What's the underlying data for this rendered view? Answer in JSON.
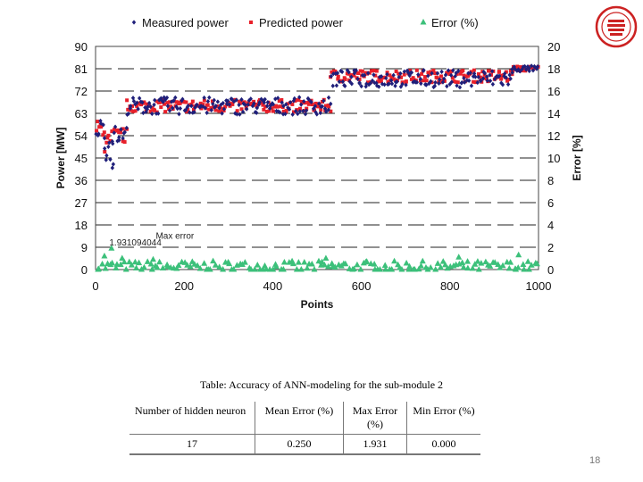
{
  "chart_data": {
    "type": "scatter",
    "xlabel": "Points",
    "ylabel": "Power [MW]",
    "y2label": "Error [%]",
    "xlim": [
      0,
      1000
    ],
    "ylim": [
      0,
      90
    ],
    "y2lim": [
      0,
      20
    ],
    "xticks": [
      "0",
      "200",
      "400",
      "600",
      "800",
      "1000"
    ],
    "yticks": [
      "0",
      "9",
      "18",
      "27",
      "36",
      "45",
      "54",
      "63",
      "72",
      "81",
      "90"
    ],
    "y2ticks": [
      "0",
      "2",
      "4",
      "6",
      "8",
      "10",
      "12",
      "14",
      "16",
      "18",
      "20"
    ],
    "grid": "horizontal dashed",
    "legend_placement": "top",
    "series": [
      {
        "name": "Measured power",
        "axis": "left",
        "color": "#1f1f7a",
        "marker": "diamond",
        "segments": [
          {
            "x": [
              0,
              20
            ],
            "y": 57,
            "spread": 4
          },
          {
            "x": [
              20,
              35
            ],
            "y": 50,
            "spread": 6
          },
          {
            "x": [
              35,
              70
            ],
            "y": 54,
            "spread": 4
          },
          {
            "x": [
              70,
              530
            ],
            "y": 66,
            "spread": 3.5
          },
          {
            "x": [
              530,
              940
            ],
            "y": 77,
            "spread": 3.5
          },
          {
            "x": [
              940,
              1000
            ],
            "y": 81,
            "spread": 1.2
          }
        ]
      },
      {
        "name": "Predicted power",
        "axis": "left",
        "color": "#e8202a",
        "marker": "square",
        "segments": [
          {
            "x": [
              0,
              20
            ],
            "y": 57,
            "spread": 3
          },
          {
            "x": [
              20,
              35
            ],
            "y": 50,
            "spread": 5
          },
          {
            "x": [
              35,
              70
            ],
            "y": 54,
            "spread": 3
          },
          {
            "x": [
              70,
              530
            ],
            "y": 66,
            "spread": 2.5
          },
          {
            "x": [
              530,
              940
            ],
            "y": 78,
            "spread": 2.5
          },
          {
            "x": [
              940,
              1000
            ],
            "y": 81,
            "spread": 1
          }
        ]
      },
      {
        "name": "Error (%)",
        "axis": "right",
        "color": "#3cc07a",
        "marker": "triangle",
        "segments": [
          {
            "x": [
              0,
              1000
            ],
            "y": 0.25,
            "spread": 0.5
          }
        ]
      }
    ],
    "annotations": [
      {
        "text": "1.931094044",
        "x": 35,
        "y": 1.931,
        "axis": "right"
      },
      {
        "text": "Max error",
        "x": 140,
        "y": 2.7,
        "axis": "right"
      }
    ]
  },
  "table": {
    "caption": "Table: Accuracy of ANN-modeling for the sub-module 2",
    "headers": [
      "Number of hidden neuron",
      "Mean Error (%)",
      "Max Error (%)",
      "Min Error (%)"
    ],
    "row": [
      "17",
      "0.250",
      "1.931",
      "0.000"
    ]
  },
  "page_number": "18"
}
